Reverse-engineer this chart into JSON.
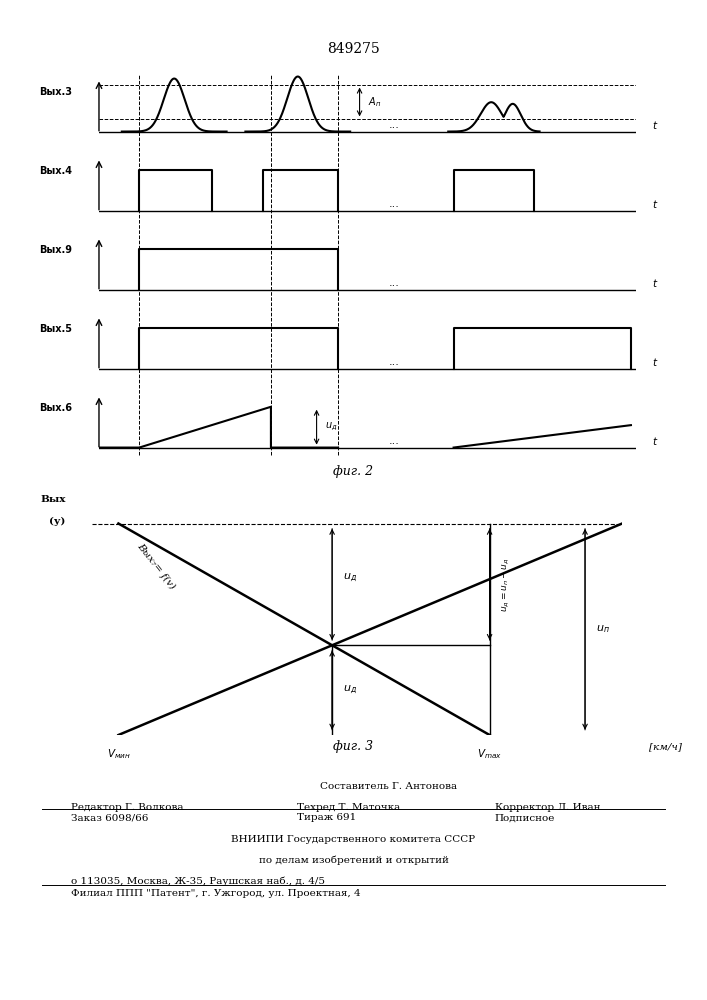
{
  "patent_number": "849275",
  "fig2_label": "фиг. 2",
  "fig3_label": "фиг. 3",
  "bg_color": "#ffffff",
  "ch3_label": "Вых.3",
  "ch4_label": "Вых.4",
  "ch9_label": "Вых.9",
  "ch5_label": "Вых.5",
  "ch6_label": "Вых.6",
  "t_label": "t",
  "fig3_ylabel1": "Вых",
  "fig3_ylabel2": "(у)",
  "fig3_xlabel": "[км/ч]",
  "fig3_vmin": "Vмин",
  "fig3_vmax": "Vmax",
  "fig3_curve_label": "Вых₇= f(v)",
  "footer_line1": "Составитель Г. Антонова",
  "footer_line2a": "Редактор Г. Волкова",
  "footer_line2b": "Техред Т. Маточка",
  "footer_line2c": "Корректор Л. Иван",
  "footer_line3a": "Заказ 6098/66",
  "footer_line3b": "Тираж 691",
  "footer_line3c": "Подписное",
  "footer_line4": "ВНИИПИ Государственного комитета СССР",
  "footer_line5": "по делам изобретений и открытий",
  "footer_line6": "о 113035, Москва, Ж-35, Раушская наб., д. 4/5",
  "footer_line7": "Филиал ППП \"Патент\", г. Ужгород, ул. Проектная, 4"
}
